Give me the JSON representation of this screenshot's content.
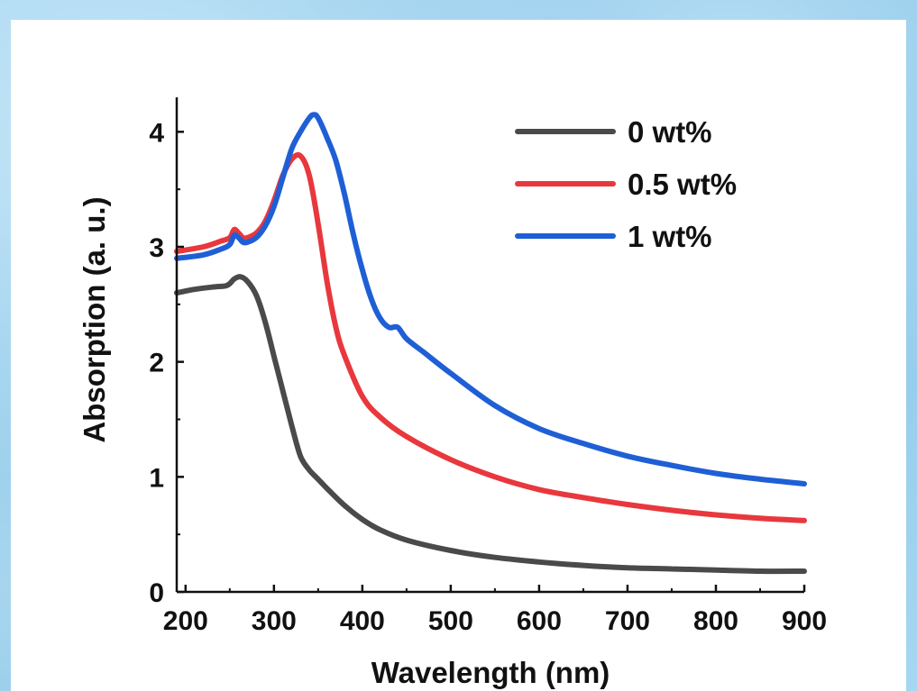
{
  "chart_data": {
    "type": "line",
    "title": "",
    "xlabel": "Wavelength (nm)",
    "ylabel": "Absorption (a. u.)",
    "xlim": [
      190,
      900
    ],
    "ylim": [
      0,
      4.3
    ],
    "xticks": [
      200,
      300,
      400,
      500,
      600,
      700,
      800,
      900
    ],
    "yticks": [
      0,
      1,
      2,
      3,
      4
    ],
    "xtick_labels": [
      "200",
      "300",
      "400",
      "500",
      "600",
      "700",
      "800",
      "900"
    ],
    "ytick_labels": [
      "0",
      "1",
      "2",
      "3",
      "4"
    ],
    "grid": false,
    "legend_position": "top-right",
    "series": [
      {
        "name": "0 wt%",
        "color": "#4a4a4a",
        "x": [
          190,
          210,
          230,
          245,
          250,
          255,
          262,
          270,
          280,
          290,
          300,
          310,
          320,
          330,
          340,
          350,
          360,
          380,
          400,
          420,
          450,
          500,
          550,
          600,
          650,
          700,
          750,
          800,
          850,
          900
        ],
        "y": [
          2.6,
          2.63,
          2.65,
          2.66,
          2.68,
          2.72,
          2.74,
          2.7,
          2.58,
          2.35,
          2.05,
          1.75,
          1.45,
          1.18,
          1.06,
          0.98,
          0.9,
          0.75,
          0.63,
          0.54,
          0.45,
          0.36,
          0.3,
          0.26,
          0.23,
          0.21,
          0.2,
          0.19,
          0.18,
          0.18
        ]
      },
      {
        "name": "0.5 wt%",
        "color": "#e8383d",
        "x": [
          190,
          220,
          240,
          250,
          255,
          260,
          265,
          270,
          280,
          290,
          300,
          310,
          320,
          330,
          340,
          350,
          360,
          370,
          380,
          400,
          420,
          450,
          500,
          550,
          600,
          650,
          700,
          750,
          800,
          850,
          900
        ],
        "y": [
          2.96,
          3.0,
          3.05,
          3.08,
          3.15,
          3.12,
          3.08,
          3.08,
          3.12,
          3.22,
          3.4,
          3.62,
          3.76,
          3.79,
          3.62,
          3.2,
          2.7,
          2.3,
          2.05,
          1.7,
          1.52,
          1.35,
          1.15,
          1.0,
          0.89,
          0.82,
          0.76,
          0.71,
          0.67,
          0.64,
          0.62
        ]
      },
      {
        "name": "1 wt%",
        "color": "#1f5fd6",
        "x": [
          190,
          220,
          240,
          250,
          255,
          260,
          265,
          270,
          280,
          290,
          300,
          310,
          320,
          330,
          340,
          345,
          350,
          360,
          370,
          380,
          390,
          400,
          410,
          420,
          430,
          440,
          450,
          470,
          500,
          550,
          600,
          650,
          700,
          750,
          800,
          850,
          900
        ],
        "y": [
          2.9,
          2.93,
          2.98,
          3.02,
          3.1,
          3.08,
          3.04,
          3.04,
          3.08,
          3.18,
          3.35,
          3.6,
          3.85,
          4.0,
          4.12,
          4.15,
          4.12,
          3.95,
          3.75,
          3.45,
          3.1,
          2.8,
          2.55,
          2.38,
          2.3,
          2.3,
          2.2,
          2.08,
          1.9,
          1.62,
          1.42,
          1.29,
          1.18,
          1.1,
          1.03,
          0.98,
          0.94
        ]
      }
    ]
  }
}
